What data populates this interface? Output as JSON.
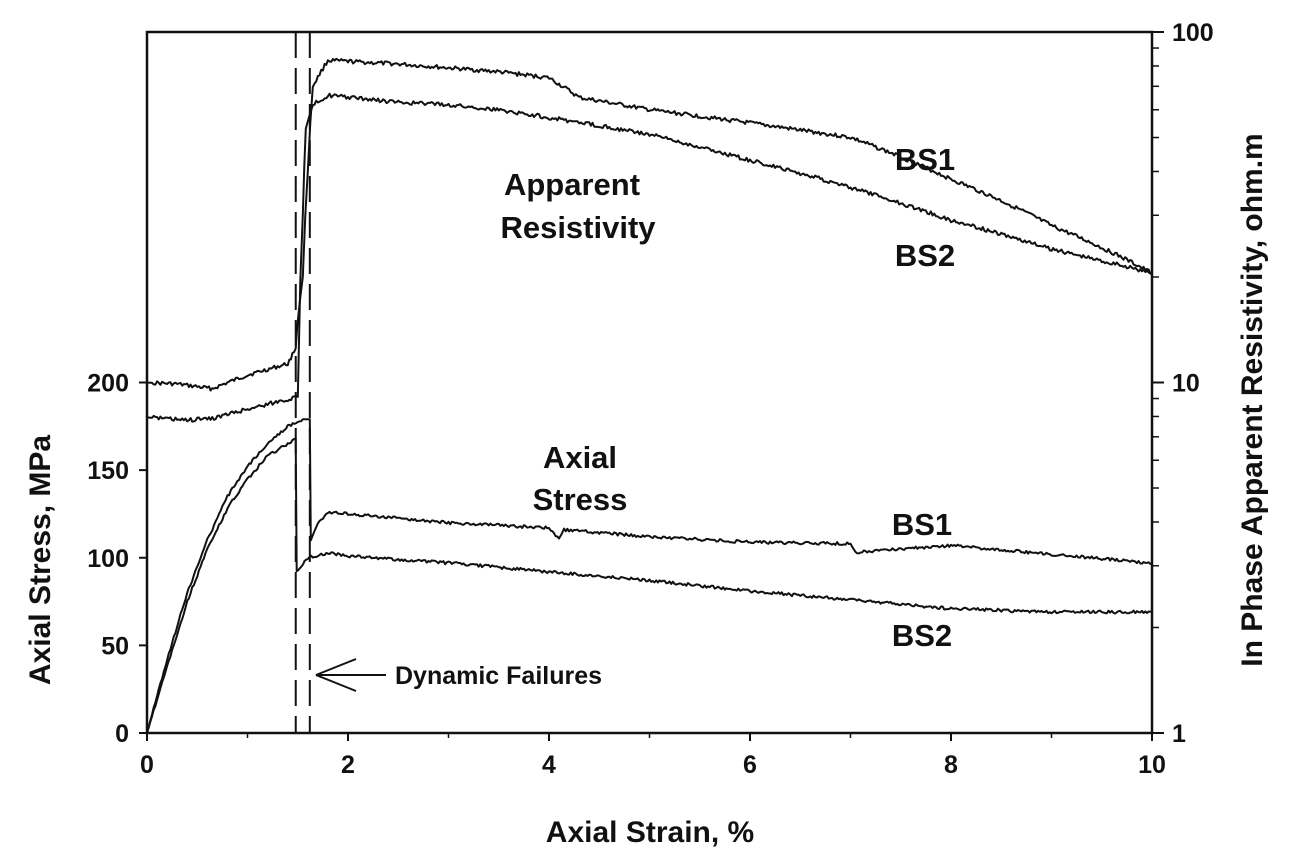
{
  "chart_data": {
    "type": "line",
    "title": "",
    "xlabel": "Axial Strain, %",
    "ylabel": "Axial Stress, MPa",
    "y2label": "In Phase Apparent Resistivity, ohm.m",
    "xlim": [
      0,
      10
    ],
    "x_ticks": [
      "0",
      "2",
      "4",
      "6",
      "8",
      "10"
    ],
    "y_left_ticks": [
      "0",
      "50",
      "100",
      "150",
      "200"
    ],
    "y_right_ticks": [
      "1",
      "10",
      "100"
    ],
    "y_right_scale": "log",
    "y_right_range": [
      1,
      100
    ],
    "grid": false,
    "legend": "none",
    "annotations": {
      "resistivity_line1": "Apparent",
      "resistivity_line2": "Resistivity",
      "stress_line1": "Axial",
      "stress_line2": "Stress",
      "bs1_res": "BS1",
      "bs2_res": "BS2",
      "bs1_stress": "BS1",
      "bs2_stress": "BS2",
      "failure": "Dynamic Failures"
    },
    "dynamic_failure_strains": [
      1.48,
      1.62
    ],
    "series": [
      {
        "name": "BS1",
        "quantity": "resistivity",
        "axis": "right",
        "x": [
          0,
          0.3,
          0.65,
          1.0,
          1.4,
          1.48,
          1.5,
          1.55,
          1.6,
          1.65,
          1.8,
          2.5,
          3.0,
          3.5,
          4.0,
          4.3,
          5.0,
          6.0,
          7.0,
          8.0,
          9.0,
          10.0
        ],
        "y": [
          10.0,
          9.9,
          9.6,
          10.5,
          11.3,
          12.5,
          15.0,
          20.0,
          40.0,
          70.0,
          83.0,
          81.0,
          79.0,
          77.0,
          74.0,
          65.0,
          60.0,
          55.0,
          50.0,
          38.0,
          28.0,
          20.5
        ]
      },
      {
        "name": "BS2",
        "quantity": "resistivity",
        "axis": "right",
        "x": [
          0,
          0.4,
          0.65,
          1.0,
          1.5,
          1.55,
          1.58,
          1.65,
          1.8,
          2.5,
          3.0,
          3.5,
          4.0,
          5.0,
          6.0,
          7.0,
          8.0,
          9.0,
          10.0
        ],
        "y": [
          7.95,
          7.8,
          7.9,
          8.4,
          9.1,
          30.0,
          53.0,
          62.0,
          66.0,
          63.0,
          62.0,
          60.0,
          57.0,
          51.0,
          43.0,
          36.0,
          29.0,
          24.0,
          20.5
        ]
      },
      {
        "name": "BS1",
        "quantity": "axial stress",
        "axis": "left",
        "x": [
          0,
          0.2,
          0.4,
          0.6,
          0.8,
          1.0,
          1.2,
          1.4,
          1.55,
          1.62,
          1.63,
          1.7,
          1.8,
          2.0,
          3.0,
          4.0,
          4.1,
          4.15,
          5.0,
          6.0,
          7.0,
          7.05,
          8.0,
          9.0,
          10.0
        ],
        "y": [
          0,
          42,
          80,
          110,
          135,
          152,
          165,
          175,
          179,
          179,
          110,
          120,
          126,
          125,
          120,
          117,
          111,
          116,
          112,
          109,
          108,
          103,
          107,
          102,
          97
        ]
      },
      {
        "name": "BS2",
        "quantity": "axial stress",
        "axis": "left",
        "x": [
          0,
          0.2,
          0.4,
          0.6,
          0.8,
          1.0,
          1.2,
          1.4,
          1.48,
          1.49,
          1.6,
          1.7,
          1.8,
          2.0,
          3.0,
          4.0,
          5.0,
          6.0,
          7.0,
          8.0,
          9.0,
          10.0
        ],
        "y": [
          0,
          38,
          75,
          105,
          128,
          145,
          158,
          165,
          168,
          92,
          100,
          101,
          103,
          101,
          97,
          92,
          87,
          81,
          76,
          71,
          69,
          69
        ]
      }
    ]
  }
}
